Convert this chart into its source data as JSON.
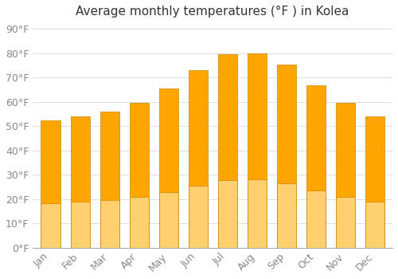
{
  "title": "Average monthly temperatures (°F ) in Kolea",
  "months": [
    "Jan",
    "Feb",
    "Mar",
    "Apr",
    "May",
    "Jun",
    "Jul",
    "Aug",
    "Sep",
    "Oct",
    "Nov",
    "Dec"
  ],
  "values": [
    52.5,
    54,
    56,
    59.5,
    65.5,
    73,
    79.5,
    80,
    75.5,
    67,
    59.5,
    54
  ],
  "bar_color_top": "#FFA500",
  "bar_color_bottom": "#FFD070",
  "bar_edge_color": "#CC8800",
  "background_color": "#FFFFFF",
  "grid_color": "#DDDDDD",
  "yticks": [
    0,
    10,
    20,
    30,
    40,
    50,
    60,
    70,
    80,
    90
  ],
  "ylim": [
    0,
    93
  ],
  "title_fontsize": 11,
  "tick_fontsize": 9,
  "tick_color": "#888888",
  "title_color": "#333333"
}
